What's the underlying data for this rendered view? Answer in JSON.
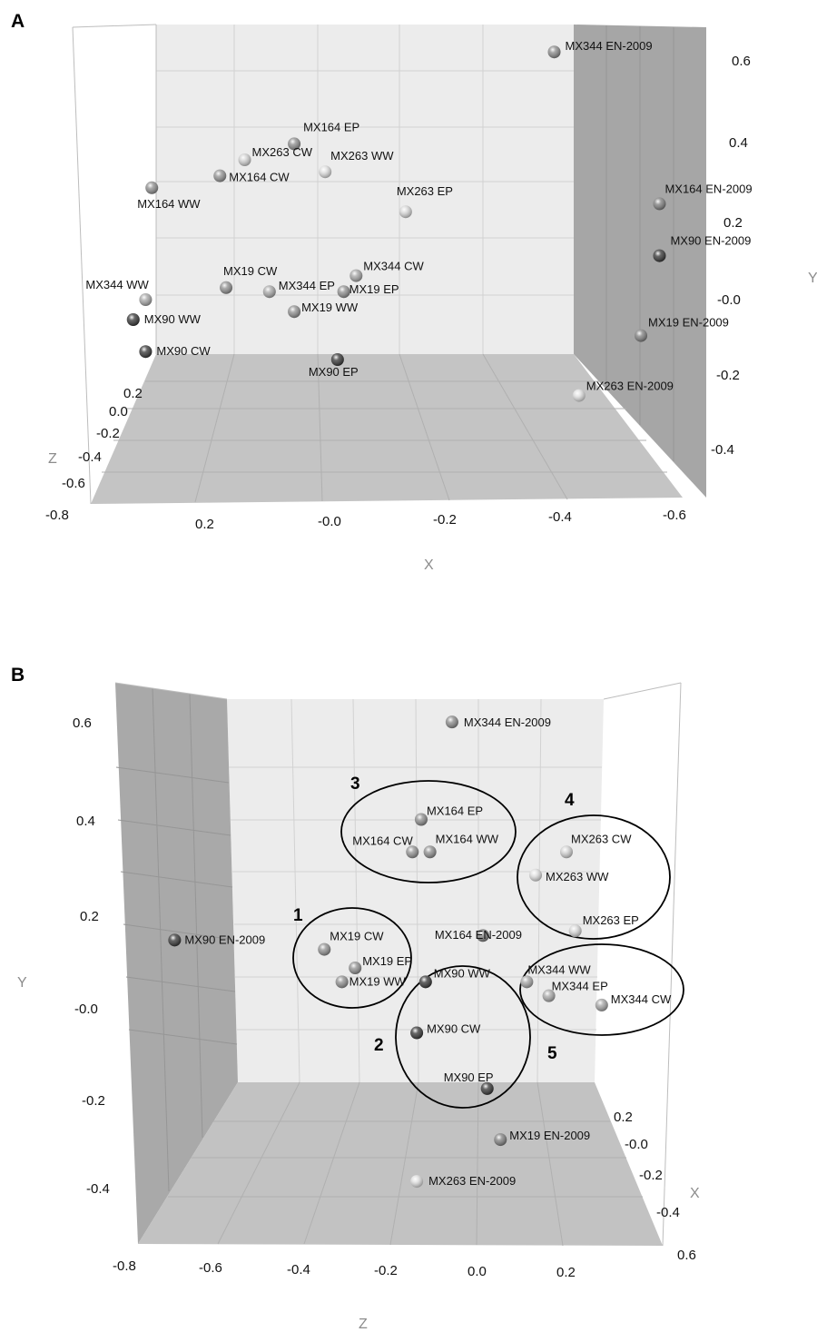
{
  "chart_data": [
    {
      "panel": "A",
      "type": "scatter",
      "projection": "3D",
      "xlabel": "X",
      "ylabel": "Y",
      "zlabel": "Z",
      "x_ticks": [
        "0.2",
        "-0.0",
        "-0.2",
        "-0.4",
        "-0.6"
      ],
      "y_ticks": [
        "0.6",
        "0.4",
        "0.2",
        "-0.0",
        "-0.2",
        "-0.4"
      ],
      "z_ticks": [
        "0.2",
        "0.0",
        "-0.2",
        "-0.4",
        "-0.6",
        "-0.8"
      ],
      "xlim": [
        0.3,
        -0.6
      ],
      "ylim": [
        -0.45,
        0.65
      ],
      "zlim": [
        -0.8,
        0.3
      ],
      "points": [
        {
          "label": "MX344 EN-2009",
          "x": -0.36,
          "y": 0.62,
          "shade": "#888888"
        },
        {
          "label": "MX164 EP",
          "x": 0.06,
          "y": 0.39,
          "shade": "#8a8a8a"
        },
        {
          "label": "MX263 CW",
          "x": 0.14,
          "y": 0.35,
          "shade": "#d0d0d0"
        },
        {
          "label": "MX263 WW",
          "x": 0.01,
          "y": 0.32,
          "shade": "#dcdcdc"
        },
        {
          "label": "MX164 CW",
          "x": 0.18,
          "y": 0.31,
          "shade": "#909090"
        },
        {
          "label": "MX164 WW",
          "x": 0.29,
          "y": 0.28,
          "shade": "#8c8c8c"
        },
        {
          "label": "MX263 EP",
          "x": -0.12,
          "y": 0.22,
          "shade": "#d6d6d6"
        },
        {
          "label": "MX164 EN-2009",
          "x": -0.53,
          "y": 0.24,
          "shade": "#7c7c7c"
        },
        {
          "label": "MX90 EN-2009",
          "x": -0.53,
          "y": 0.11,
          "shade": "#333333"
        },
        {
          "label": "MX344 CW",
          "x": -0.04,
          "y": 0.06,
          "shade": "#a2a2a2"
        },
        {
          "label": "MX19 CW",
          "x": 0.17,
          "y": 0.03,
          "shade": "#8e8e8e"
        },
        {
          "label": "MX344 EP",
          "x": 0.1,
          "y": 0.02,
          "shade": "#a6a6a6"
        },
        {
          "label": "MX344 WW",
          "x": 0.3,
          "y": 0.0,
          "shade": "#a4a4a4"
        },
        {
          "label": "MX19 EP",
          "x": -0.02,
          "y": 0.02,
          "shade": "#8e8e8e"
        },
        {
          "label": "MX19 WW",
          "x": 0.06,
          "y": -0.03,
          "shade": "#8e8e8e"
        },
        {
          "label": "MX90 WW",
          "x": 0.32,
          "y": -0.05,
          "shade": "#333333"
        },
        {
          "label": "MX19 EN-2009",
          "x": -0.5,
          "y": -0.09,
          "shade": "#7e7e7e"
        },
        {
          "label": "MX90 CW",
          "x": 0.3,
          "y": -0.13,
          "shade": "#333333"
        },
        {
          "label": "MX90 EP",
          "x": -0.01,
          "y": -0.15,
          "shade": "#333333"
        },
        {
          "label": "MX263 EN-2009",
          "x": -0.4,
          "y": -0.24,
          "shade": "#dedede"
        }
      ]
    },
    {
      "panel": "B",
      "type": "scatter",
      "projection": "3D",
      "xlabel": "Z",
      "ylabel": "Y",
      "zlabel": "X",
      "x_ticks": [
        "-0.8",
        "-0.6",
        "-0.4",
        "-0.2",
        "0.0",
        "0.2"
      ],
      "y_ticks": [
        "0.6",
        "0.4",
        "0.2",
        "-0.0",
        "-0.2",
        "-0.4"
      ],
      "z_ticks": [
        "0.2",
        "-0.0",
        "-0.2",
        "-0.4",
        "0.6"
      ],
      "xlim": [
        -0.8,
        0.4
      ],
      "ylim": [
        -0.5,
        0.7
      ],
      "points": [
        {
          "label": "MX344 EN-2009",
          "x": -0.06,
          "y": 0.62,
          "shade": "#888888"
        },
        {
          "label": "MX164 EP",
          "x": -0.13,
          "y": 0.41,
          "shade": "#8a8a8a"
        },
        {
          "label": "MX164 CW",
          "x": -0.15,
          "y": 0.34,
          "shade": "#909090"
        },
        {
          "label": "MX164 WW",
          "x": -0.11,
          "y": 0.34,
          "shade": "#8c8c8c"
        },
        {
          "label": "MX263 CW",
          "x": 0.2,
          "y": 0.34,
          "shade": "#d0d0d0"
        },
        {
          "label": "MX263 WW",
          "x": 0.13,
          "y": 0.29,
          "shade": "#dcdcdc"
        },
        {
          "label": "MX263 EP",
          "x": 0.22,
          "y": 0.17,
          "shade": "#d6d6d6"
        },
        {
          "label": "MX164 EN-2009",
          "x": 0.01,
          "y": 0.16,
          "shade": "#7c7c7c"
        },
        {
          "label": "MX90 EN-2009",
          "x": -0.69,
          "y": 0.15,
          "shade": "#333333"
        },
        {
          "label": "MX19 CW",
          "x": -0.35,
          "y": 0.13,
          "shade": "#8e8e8e"
        },
        {
          "label": "MX19 EP",
          "x": -0.28,
          "y": 0.09,
          "shade": "#8e8e8e"
        },
        {
          "label": "MX19 WW",
          "x": -0.31,
          "y": 0.06,
          "shade": "#8e8e8e"
        },
        {
          "label": "MX90 WW",
          "x": -0.12,
          "y": 0.06,
          "shade": "#333333"
        },
        {
          "label": "MX344 WW",
          "x": 0.11,
          "y": 0.06,
          "shade": "#a4a4a4"
        },
        {
          "label": "MX344 EP",
          "x": 0.16,
          "y": 0.03,
          "shade": "#a6a6a6"
        },
        {
          "label": "MX344 CW",
          "x": 0.28,
          "y": 0.01,
          "shade": "#a2a2a2"
        },
        {
          "label": "MX90 CW",
          "x": -0.14,
          "y": -0.05,
          "shade": "#333333"
        },
        {
          "label": "MX90 EP",
          "x": 0.02,
          "y": -0.17,
          "shade": "#333333"
        },
        {
          "label": "MX19 EN-2009",
          "x": 0.05,
          "y": -0.28,
          "shade": "#7e7e7e"
        },
        {
          "label": "MX263 EN-2009",
          "x": -0.14,
          "y": -0.37,
          "shade": "#dedede"
        }
      ],
      "groups": [
        {
          "label": "1",
          "members": [
            "MX19 CW",
            "MX19 EP",
            "MX19 WW"
          ]
        },
        {
          "label": "2",
          "members": [
            "MX90 WW",
            "MX90 CW",
            "MX90 EP"
          ]
        },
        {
          "label": "3",
          "members": [
            "MX164 EP",
            "MX164 CW",
            "MX164 WW"
          ]
        },
        {
          "label": "4",
          "members": [
            "MX263 CW",
            "MX263 WW",
            "MX263 EP"
          ]
        },
        {
          "label": "5",
          "members": [
            "MX344 WW",
            "MX344 EP",
            "MX344 CW"
          ]
        }
      ]
    }
  ],
  "colors": {
    "back_wall": "#ececec",
    "side_wall": "#a9a9a9",
    "floor": "#c3c3c3",
    "grid": "#cfcfcf",
    "frame": "#b8b8b8"
  }
}
